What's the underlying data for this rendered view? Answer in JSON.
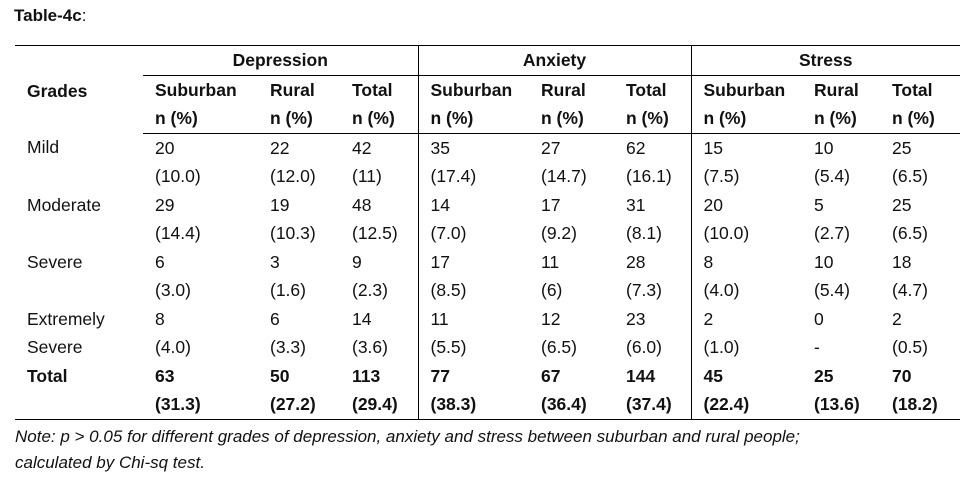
{
  "title": "Table-4c",
  "title_suffix": ":",
  "grades_header": "Grades",
  "groups": [
    "Depression",
    "Anxiety",
    "Stress"
  ],
  "subheaders": [
    {
      "label": "Suburban",
      "unit": "n (%)"
    },
    {
      "label": "Rural",
      "unit": "n (%)"
    },
    {
      "label": "Total",
      "unit": "n (%)"
    }
  ],
  "rows": [
    {
      "grade": [
        "Mild",
        ""
      ],
      "cells": [
        [
          "20",
          "(10.0)"
        ],
        [
          "22",
          "(12.0)"
        ],
        [
          "42",
          "(11)"
        ],
        [
          "35",
          "(17.4)"
        ],
        [
          "27",
          "(14.7)"
        ],
        [
          "62",
          "(16.1)"
        ],
        [
          "15",
          "(7.5)"
        ],
        [
          "10",
          "(5.4)"
        ],
        [
          "25",
          "(6.5)"
        ]
      ]
    },
    {
      "grade": [
        "Moderate",
        ""
      ],
      "cells": [
        [
          "29",
          "(14.4)"
        ],
        [
          "19",
          "(10.3)"
        ],
        [
          "48",
          "(12.5)"
        ],
        [
          "14",
          "(7.0)"
        ],
        [
          "17",
          "(9.2)"
        ],
        [
          "31",
          "(8.1)"
        ],
        [
          "20",
          "(10.0)"
        ],
        [
          "5",
          "(2.7)"
        ],
        [
          "25",
          "(6.5)"
        ]
      ]
    },
    {
      "grade": [
        "Severe",
        ""
      ],
      "cells": [
        [
          "6",
          "(3.0)"
        ],
        [
          "3",
          "(1.6)"
        ],
        [
          "9",
          "(2.3)"
        ],
        [
          "17",
          "(8.5)"
        ],
        [
          "11",
          "(6)"
        ],
        [
          "28",
          "(7.3)"
        ],
        [
          "8",
          "(4.0)"
        ],
        [
          "10",
          "(5.4)"
        ],
        [
          "18",
          "(4.7)"
        ]
      ]
    },
    {
      "grade": [
        "Extremely",
        "Severe"
      ],
      "cells": [
        [
          "8",
          "(4.0)"
        ],
        [
          "6",
          "(3.3)"
        ],
        [
          "14",
          "(3.6)"
        ],
        [
          "11",
          "(5.5)"
        ],
        [
          "12",
          "(6.5)"
        ],
        [
          "23",
          "(6.0)"
        ],
        [
          "2",
          "(1.0)"
        ],
        [
          "0",
          "-"
        ],
        [
          "2",
          "(0.5)"
        ]
      ]
    },
    {
      "grade": [
        "Total",
        ""
      ],
      "cells": [
        [
          "63",
          "(31.3)"
        ],
        [
          "50",
          "(27.2)"
        ],
        [
          "113",
          "(29.4)"
        ],
        [
          "77",
          "(38.3)"
        ],
        [
          "67",
          "(36.4)"
        ],
        [
          "144",
          "(37.4)"
        ],
        [
          "45",
          "(22.4)"
        ],
        [
          "25",
          "(13.6)"
        ],
        [
          "70",
          "(18.2)"
        ]
      ]
    }
  ],
  "note_line1": "Note: p > 0.05 for different grades of depression, anxiety and stress between suburban and rural people;",
  "note_line2": "calculated by Chi-sq test."
}
